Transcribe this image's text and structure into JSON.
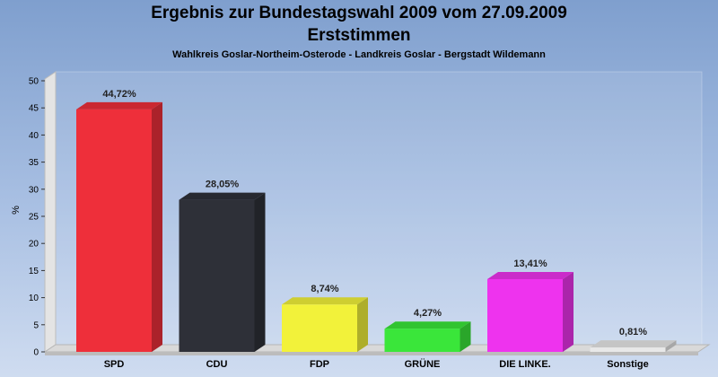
{
  "chart_data": {
    "type": "bar",
    "title": "Ergebnis zur Bundestagswahl 2009 vom 27.09.2009",
    "subtitle": "Erststimmen",
    "caption": "Wahlkreis Goslar-Northeim-Osterode - Landkreis Goslar - Bergstadt Wildemann",
    "ylabel": "%",
    "xlabel": "",
    "ylim": [
      0,
      50
    ],
    "yticks": [
      0,
      5,
      10,
      15,
      20,
      25,
      30,
      35,
      40,
      45,
      50
    ],
    "categories": [
      "SPD",
      "CDU",
      "FDP",
      "GRÜNE",
      "DIE LINKE.",
      "Sonstige"
    ],
    "values": [
      44.72,
      28.05,
      8.74,
      4.27,
      13.41,
      0.81
    ],
    "value_labels": [
      "44,72%",
      "28,05%",
      "8,74%",
      "4,27%",
      "13,41%",
      "0,81%"
    ],
    "colors": [
      "#ee2f3a",
      "#2e3038",
      "#f2f23a",
      "#3ae63a",
      "#ee33ee",
      "#e8e8e8"
    ],
    "grid": false,
    "legend": "none"
  }
}
